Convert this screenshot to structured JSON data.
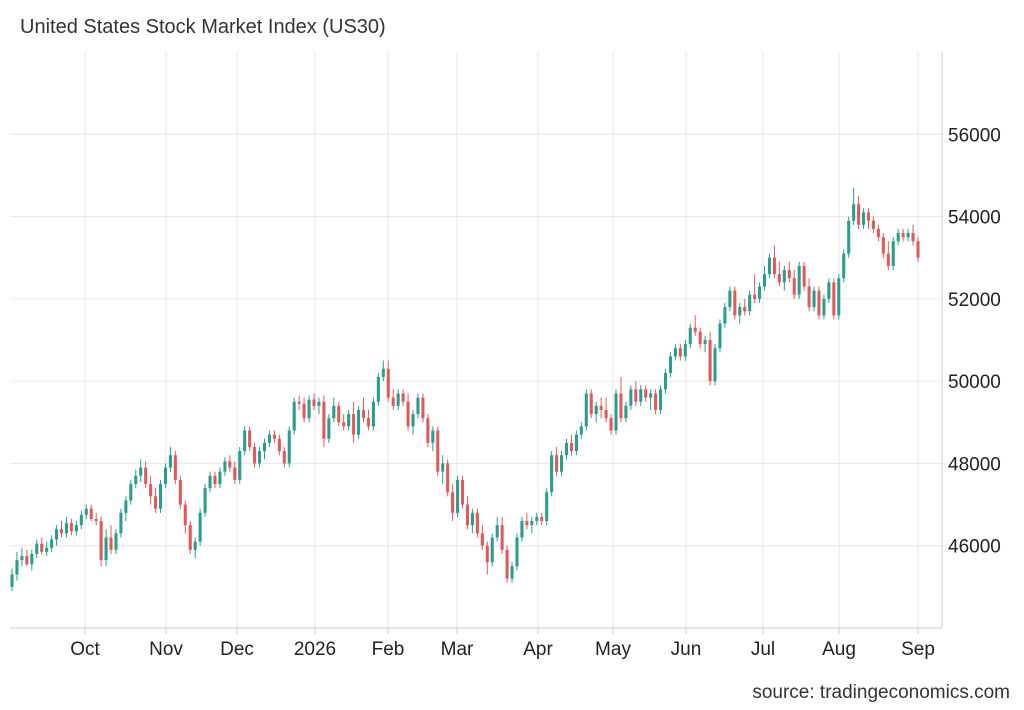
{
  "chart_data": {
    "type": "candlestick",
    "title": "United States Stock Market Index (US30)",
    "source": "source: tradingeconomics.com",
    "x_labels": [
      "Oct",
      "Nov",
      "Dec",
      "2026",
      "Feb",
      "Mar",
      "Apr",
      "May",
      "Jun",
      "Jul",
      "Aug",
      "Sep"
    ],
    "y_ticks": [
      46000,
      48000,
      50000,
      52000,
      54000,
      56000
    ],
    "ylim": [
      44000,
      58000
    ],
    "grid": true,
    "colors": {
      "up": "#2a9d8f",
      "down": "#e05a5a",
      "grid": "#e6e6e6",
      "axis": "#cccccc"
    },
    "series": [
      {
        "o": 45000,
        "h": 45450,
        "l": 44900,
        "c": 45300
      },
      {
        "o": 45300,
        "h": 45850,
        "l": 45150,
        "c": 45650
      },
      {
        "o": 45650,
        "h": 45950,
        "l": 45500,
        "c": 45750
      },
      {
        "o": 45750,
        "h": 45900,
        "l": 45500,
        "c": 45550
      },
      {
        "o": 45550,
        "h": 45900,
        "l": 45400,
        "c": 45800
      },
      {
        "o": 45800,
        "h": 46150,
        "l": 45700,
        "c": 46050
      },
      {
        "o": 46050,
        "h": 46200,
        "l": 45800,
        "c": 45850
      },
      {
        "o": 45850,
        "h": 46100,
        "l": 45750,
        "c": 45950
      },
      {
        "o": 45950,
        "h": 46250,
        "l": 45850,
        "c": 46150
      },
      {
        "o": 46150,
        "h": 46500,
        "l": 46000,
        "c": 46400
      },
      {
        "o": 46400,
        "h": 46600,
        "l": 46200,
        "c": 46300
      },
      {
        "o": 46300,
        "h": 46700,
        "l": 46200,
        "c": 46550
      },
      {
        "o": 46550,
        "h": 46650,
        "l": 46250,
        "c": 46350
      },
      {
        "o": 46350,
        "h": 46600,
        "l": 46250,
        "c": 46500
      },
      {
        "o": 46500,
        "h": 46850,
        "l": 46400,
        "c": 46750
      },
      {
        "o": 46750,
        "h": 47000,
        "l": 46650,
        "c": 46900
      },
      {
        "o": 46900,
        "h": 47000,
        "l": 46600,
        "c": 46650
      },
      {
        "o": 46650,
        "h": 46800,
        "l": 46500,
        "c": 46600
      },
      {
        "o": 46600,
        "h": 46700,
        "l": 45500,
        "c": 45650
      },
      {
        "o": 45650,
        "h": 46400,
        "l": 45500,
        "c": 46200
      },
      {
        "o": 46200,
        "h": 46500,
        "l": 45800,
        "c": 45900
      },
      {
        "o": 45900,
        "h": 46400,
        "l": 45800,
        "c": 46300
      },
      {
        "o": 46300,
        "h": 46900,
        "l": 46200,
        "c": 46800
      },
      {
        "o": 46800,
        "h": 47200,
        "l": 46600,
        "c": 47100
      },
      {
        "o": 47100,
        "h": 47600,
        "l": 47000,
        "c": 47500
      },
      {
        "o": 47500,
        "h": 47850,
        "l": 47400,
        "c": 47700
      },
      {
        "o": 47700,
        "h": 48100,
        "l": 47550,
        "c": 47900
      },
      {
        "o": 47900,
        "h": 48050,
        "l": 47400,
        "c": 47500
      },
      {
        "o": 47500,
        "h": 47700,
        "l": 47000,
        "c": 47200
      },
      {
        "o": 47200,
        "h": 47400,
        "l": 46800,
        "c": 46900
      },
      {
        "o": 46900,
        "h": 47600,
        "l": 46800,
        "c": 47500
      },
      {
        "o": 47500,
        "h": 48000,
        "l": 47400,
        "c": 47900
      },
      {
        "o": 47900,
        "h": 48400,
        "l": 47800,
        "c": 48200
      },
      {
        "o": 48200,
        "h": 48300,
        "l": 47500,
        "c": 47600
      },
      {
        "o": 47600,
        "h": 47700,
        "l": 46900,
        "c": 47000
      },
      {
        "o": 47000,
        "h": 47100,
        "l": 46300,
        "c": 46500
      },
      {
        "o": 46500,
        "h": 46600,
        "l": 45800,
        "c": 45900
      },
      {
        "o": 45900,
        "h": 46200,
        "l": 45700,
        "c": 46100
      },
      {
        "o": 46100,
        "h": 46900,
        "l": 46000,
        "c": 46800
      },
      {
        "o": 46800,
        "h": 47500,
        "l": 46700,
        "c": 47400
      },
      {
        "o": 47400,
        "h": 47800,
        "l": 47300,
        "c": 47700
      },
      {
        "o": 47700,
        "h": 47800,
        "l": 47400,
        "c": 47500
      },
      {
        "o": 47500,
        "h": 47900,
        "l": 47400,
        "c": 47800
      },
      {
        "o": 47800,
        "h": 48150,
        "l": 47700,
        "c": 48050
      },
      {
        "o": 48050,
        "h": 48200,
        "l": 47800,
        "c": 47900
      },
      {
        "o": 47900,
        "h": 48050,
        "l": 47500,
        "c": 47600
      },
      {
        "o": 47600,
        "h": 48400,
        "l": 47500,
        "c": 48300
      },
      {
        "o": 48300,
        "h": 48900,
        "l": 48200,
        "c": 48800
      },
      {
        "o": 48800,
        "h": 48900,
        "l": 48300,
        "c": 48400
      },
      {
        "o": 48400,
        "h": 48500,
        "l": 47900,
        "c": 48000
      },
      {
        "o": 48000,
        "h": 48400,
        "l": 47900,
        "c": 48300
      },
      {
        "o": 48300,
        "h": 48600,
        "l": 48100,
        "c": 48500
      },
      {
        "o": 48500,
        "h": 48800,
        "l": 48400,
        "c": 48700
      },
      {
        "o": 48700,
        "h": 48800,
        "l": 48500,
        "c": 48600
      },
      {
        "o": 48600,
        "h": 48700,
        "l": 48200,
        "c": 48300
      },
      {
        "o": 48300,
        "h": 48400,
        "l": 47900,
        "c": 48000
      },
      {
        "o": 48000,
        "h": 48900,
        "l": 47900,
        "c": 48800
      },
      {
        "o": 48800,
        "h": 49600,
        "l": 48700,
        "c": 49500
      },
      {
        "o": 49500,
        "h": 49650,
        "l": 49300,
        "c": 49450
      },
      {
        "o": 49450,
        "h": 49600,
        "l": 49000,
        "c": 49100
      },
      {
        "o": 49100,
        "h": 49650,
        "l": 49000,
        "c": 49550
      },
      {
        "o": 49550,
        "h": 49700,
        "l": 49300,
        "c": 49400
      },
      {
        "o": 49400,
        "h": 49600,
        "l": 49200,
        "c": 49500
      },
      {
        "o": 49500,
        "h": 49650,
        "l": 48400,
        "c": 48600
      },
      {
        "o": 48600,
        "h": 49200,
        "l": 48500,
        "c": 49100
      },
      {
        "o": 49100,
        "h": 49600,
        "l": 49000,
        "c": 49400
      },
      {
        "o": 49400,
        "h": 49500,
        "l": 48900,
        "c": 49000
      },
      {
        "o": 49000,
        "h": 49200,
        "l": 48800,
        "c": 48900
      },
      {
        "o": 48900,
        "h": 49300,
        "l": 48800,
        "c": 49200
      },
      {
        "o": 49200,
        "h": 49500,
        "l": 48500,
        "c": 48700
      },
      {
        "o": 48700,
        "h": 49400,
        "l": 48600,
        "c": 49300
      },
      {
        "o": 49300,
        "h": 49600,
        "l": 49000,
        "c": 49100
      },
      {
        "o": 49100,
        "h": 49300,
        "l": 48800,
        "c": 48900
      },
      {
        "o": 48900,
        "h": 49600,
        "l": 48800,
        "c": 49500
      },
      {
        "o": 49500,
        "h": 50200,
        "l": 49400,
        "c": 50100
      },
      {
        "o": 50100,
        "h": 50500,
        "l": 50000,
        "c": 50300
      },
      {
        "o": 50300,
        "h": 50500,
        "l": 49500,
        "c": 49600
      },
      {
        "o": 49600,
        "h": 49800,
        "l": 49300,
        "c": 49400
      },
      {
        "o": 49400,
        "h": 49800,
        "l": 49300,
        "c": 49700
      },
      {
        "o": 49700,
        "h": 49800,
        "l": 49400,
        "c": 49500
      },
      {
        "o": 49500,
        "h": 49700,
        "l": 48800,
        "c": 48900
      },
      {
        "o": 48900,
        "h": 49300,
        "l": 48700,
        "c": 49200
      },
      {
        "o": 49200,
        "h": 49700,
        "l": 49100,
        "c": 49600
      },
      {
        "o": 49600,
        "h": 49700,
        "l": 49000,
        "c": 49100
      },
      {
        "o": 49100,
        "h": 49200,
        "l": 48400,
        "c": 48500
      },
      {
        "o": 48500,
        "h": 48900,
        "l": 48300,
        "c": 48800
      },
      {
        "o": 48800,
        "h": 48900,
        "l": 47700,
        "c": 47800
      },
      {
        "o": 47800,
        "h": 48200,
        "l": 47500,
        "c": 48000
      },
      {
        "o": 48000,
        "h": 48100,
        "l": 47200,
        "c": 47300
      },
      {
        "o": 47300,
        "h": 47500,
        "l": 46600,
        "c": 46800
      },
      {
        "o": 46800,
        "h": 47700,
        "l": 46700,
        "c": 47600
      },
      {
        "o": 47600,
        "h": 47700,
        "l": 46900,
        "c": 47000
      },
      {
        "o": 47000,
        "h": 47200,
        "l": 46400,
        "c": 46500
      },
      {
        "o": 46500,
        "h": 46900,
        "l": 46300,
        "c": 46800
      },
      {
        "o": 46800,
        "h": 46900,
        "l": 46200,
        "c": 46300
      },
      {
        "o": 46300,
        "h": 46500,
        "l": 45900,
        "c": 46000
      },
      {
        "o": 46000,
        "h": 46100,
        "l": 45300,
        "c": 45600
      },
      {
        "o": 45600,
        "h": 46300,
        "l": 45500,
        "c": 46200
      },
      {
        "o": 46200,
        "h": 46700,
        "l": 46100,
        "c": 46500
      },
      {
        "o": 46500,
        "h": 46700,
        "l": 45800,
        "c": 45900
      },
      {
        "o": 45900,
        "h": 46000,
        "l": 45100,
        "c": 45200
      },
      {
        "o": 45200,
        "h": 45600,
        "l": 45100,
        "c": 45500
      },
      {
        "o": 45500,
        "h": 46300,
        "l": 45400,
        "c": 46200
      },
      {
        "o": 46200,
        "h": 46700,
        "l": 46100,
        "c": 46600
      },
      {
        "o": 46600,
        "h": 46800,
        "l": 46400,
        "c": 46500
      },
      {
        "o": 46500,
        "h": 46700,
        "l": 46300,
        "c": 46600
      },
      {
        "o": 46600,
        "h": 46800,
        "l": 46500,
        "c": 46700
      },
      {
        "o": 46700,
        "h": 46800,
        "l": 46500,
        "c": 46600
      },
      {
        "o": 46600,
        "h": 47400,
        "l": 46500,
        "c": 47300
      },
      {
        "o": 47300,
        "h": 48300,
        "l": 47200,
        "c": 48200
      },
      {
        "o": 48200,
        "h": 48400,
        "l": 47700,
        "c": 47800
      },
      {
        "o": 47800,
        "h": 48300,
        "l": 47700,
        "c": 48200
      },
      {
        "o": 48200,
        "h": 48600,
        "l": 48100,
        "c": 48500
      },
      {
        "o": 48500,
        "h": 48700,
        "l": 48200,
        "c": 48300
      },
      {
        "o": 48300,
        "h": 48800,
        "l": 48200,
        "c": 48700
      },
      {
        "o": 48700,
        "h": 49000,
        "l": 48600,
        "c": 48900
      },
      {
        "o": 48900,
        "h": 49800,
        "l": 48800,
        "c": 49700
      },
      {
        "o": 49700,
        "h": 49800,
        "l": 49100,
        "c": 49200
      },
      {
        "o": 49200,
        "h": 49500,
        "l": 49000,
        "c": 49400
      },
      {
        "o": 49400,
        "h": 49600,
        "l": 49100,
        "c": 49300
      },
      {
        "o": 49300,
        "h": 49600,
        "l": 49000,
        "c": 49100
      },
      {
        "o": 49100,
        "h": 49200,
        "l": 48700,
        "c": 48800
      },
      {
        "o": 48800,
        "h": 49800,
        "l": 48700,
        "c": 49700
      },
      {
        "o": 49700,
        "h": 50100,
        "l": 49000,
        "c": 49100
      },
      {
        "o": 49100,
        "h": 49500,
        "l": 49000,
        "c": 49400
      },
      {
        "o": 49400,
        "h": 49900,
        "l": 49300,
        "c": 49800
      },
      {
        "o": 49800,
        "h": 50000,
        "l": 49400,
        "c": 49500
      },
      {
        "o": 49500,
        "h": 49900,
        "l": 49400,
        "c": 49800
      },
      {
        "o": 49800,
        "h": 49900,
        "l": 49500,
        "c": 49600
      },
      {
        "o": 49600,
        "h": 49800,
        "l": 49300,
        "c": 49700
      },
      {
        "o": 49700,
        "h": 49800,
        "l": 49200,
        "c": 49300
      },
      {
        "o": 49300,
        "h": 49900,
        "l": 49200,
        "c": 49800
      },
      {
        "o": 49800,
        "h": 50300,
        "l": 49700,
        "c": 50200
      },
      {
        "o": 50200,
        "h": 50700,
        "l": 50100,
        "c": 50600
      },
      {
        "o": 50600,
        "h": 50900,
        "l": 50500,
        "c": 50800
      },
      {
        "o": 50800,
        "h": 50900,
        "l": 50500,
        "c": 50600
      },
      {
        "o": 50600,
        "h": 51000,
        "l": 50500,
        "c": 50900
      },
      {
        "o": 50900,
        "h": 51400,
        "l": 50800,
        "c": 51300
      },
      {
        "o": 51300,
        "h": 51600,
        "l": 51100,
        "c": 51200
      },
      {
        "o": 51200,
        "h": 51300,
        "l": 50800,
        "c": 50900
      },
      {
        "o": 50900,
        "h": 51100,
        "l": 50700,
        "c": 51000
      },
      {
        "o": 51000,
        "h": 51200,
        "l": 49900,
        "c": 50000
      },
      {
        "o": 50000,
        "h": 50900,
        "l": 49900,
        "c": 50800
      },
      {
        "o": 50800,
        "h": 51500,
        "l": 50700,
        "c": 51400
      },
      {
        "o": 51400,
        "h": 51900,
        "l": 51300,
        "c": 51800
      },
      {
        "o": 51800,
        "h": 52300,
        "l": 51700,
        "c": 52200
      },
      {
        "o": 52200,
        "h": 52300,
        "l": 51500,
        "c": 51600
      },
      {
        "o": 51600,
        "h": 51900,
        "l": 51400,
        "c": 51800
      },
      {
        "o": 51800,
        "h": 52000,
        "l": 51600,
        "c": 51700
      },
      {
        "o": 51700,
        "h": 52200,
        "l": 51600,
        "c": 52100
      },
      {
        "o": 52100,
        "h": 52600,
        "l": 51900,
        "c": 52000
      },
      {
        "o": 52000,
        "h": 52400,
        "l": 51900,
        "c": 52300
      },
      {
        "o": 52300,
        "h": 52800,
        "l": 52200,
        "c": 52600
      },
      {
        "o": 52600,
        "h": 53100,
        "l": 52500,
        "c": 53000
      },
      {
        "o": 53000,
        "h": 53300,
        "l": 52500,
        "c": 52600
      },
      {
        "o": 52600,
        "h": 52900,
        "l": 52300,
        "c": 52400
      },
      {
        "o": 52400,
        "h": 52800,
        "l": 52200,
        "c": 52700
      },
      {
        "o": 52700,
        "h": 52900,
        "l": 52400,
        "c": 52500
      },
      {
        "o": 52500,
        "h": 52700,
        "l": 52000,
        "c": 52100
      },
      {
        "o": 52100,
        "h": 52900,
        "l": 52000,
        "c": 52800
      },
      {
        "o": 52800,
        "h": 52900,
        "l": 52200,
        "c": 52300
      },
      {
        "o": 52300,
        "h": 52500,
        "l": 51700,
        "c": 51800
      },
      {
        "o": 51800,
        "h": 52300,
        "l": 51700,
        "c": 52200
      },
      {
        "o": 52200,
        "h": 52300,
        "l": 51500,
        "c": 51600
      },
      {
        "o": 51600,
        "h": 52100,
        "l": 51500,
        "c": 52000
      },
      {
        "o": 52000,
        "h": 52500,
        "l": 51900,
        "c": 52400
      },
      {
        "o": 52400,
        "h": 52500,
        "l": 51500,
        "c": 51600
      },
      {
        "o": 51600,
        "h": 52600,
        "l": 51500,
        "c": 52500
      },
      {
        "o": 52500,
        "h": 53200,
        "l": 52400,
        "c": 53100
      },
      {
        "o": 53100,
        "h": 54000,
        "l": 53000,
        "c": 53900
      },
      {
        "o": 53900,
        "h": 54700,
        "l": 53800,
        "c": 54300
      },
      {
        "o": 54300,
        "h": 54500,
        "l": 53700,
        "c": 53800
      },
      {
        "o": 53800,
        "h": 54200,
        "l": 53700,
        "c": 54100
      },
      {
        "o": 54100,
        "h": 54200,
        "l": 53700,
        "c": 53900
      },
      {
        "o": 53900,
        "h": 54000,
        "l": 53600,
        "c": 53700
      },
      {
        "o": 53700,
        "h": 53800,
        "l": 53400,
        "c": 53500
      },
      {
        "o": 53500,
        "h": 53600,
        "l": 53000,
        "c": 53100
      },
      {
        "o": 53100,
        "h": 53400,
        "l": 52700,
        "c": 52800
      },
      {
        "o": 52800,
        "h": 53500,
        "l": 52700,
        "c": 53400
      },
      {
        "o": 53400,
        "h": 53700,
        "l": 53300,
        "c": 53600
      },
      {
        "o": 53600,
        "h": 53700,
        "l": 53400,
        "c": 53500
      },
      {
        "o": 53500,
        "h": 53700,
        "l": 53400,
        "c": 53600
      },
      {
        "o": 53600,
        "h": 53800,
        "l": 53300,
        "c": 53400
      },
      {
        "o": 53400,
        "h": 53500,
        "l": 52900,
        "c": 53000
      }
    ]
  }
}
